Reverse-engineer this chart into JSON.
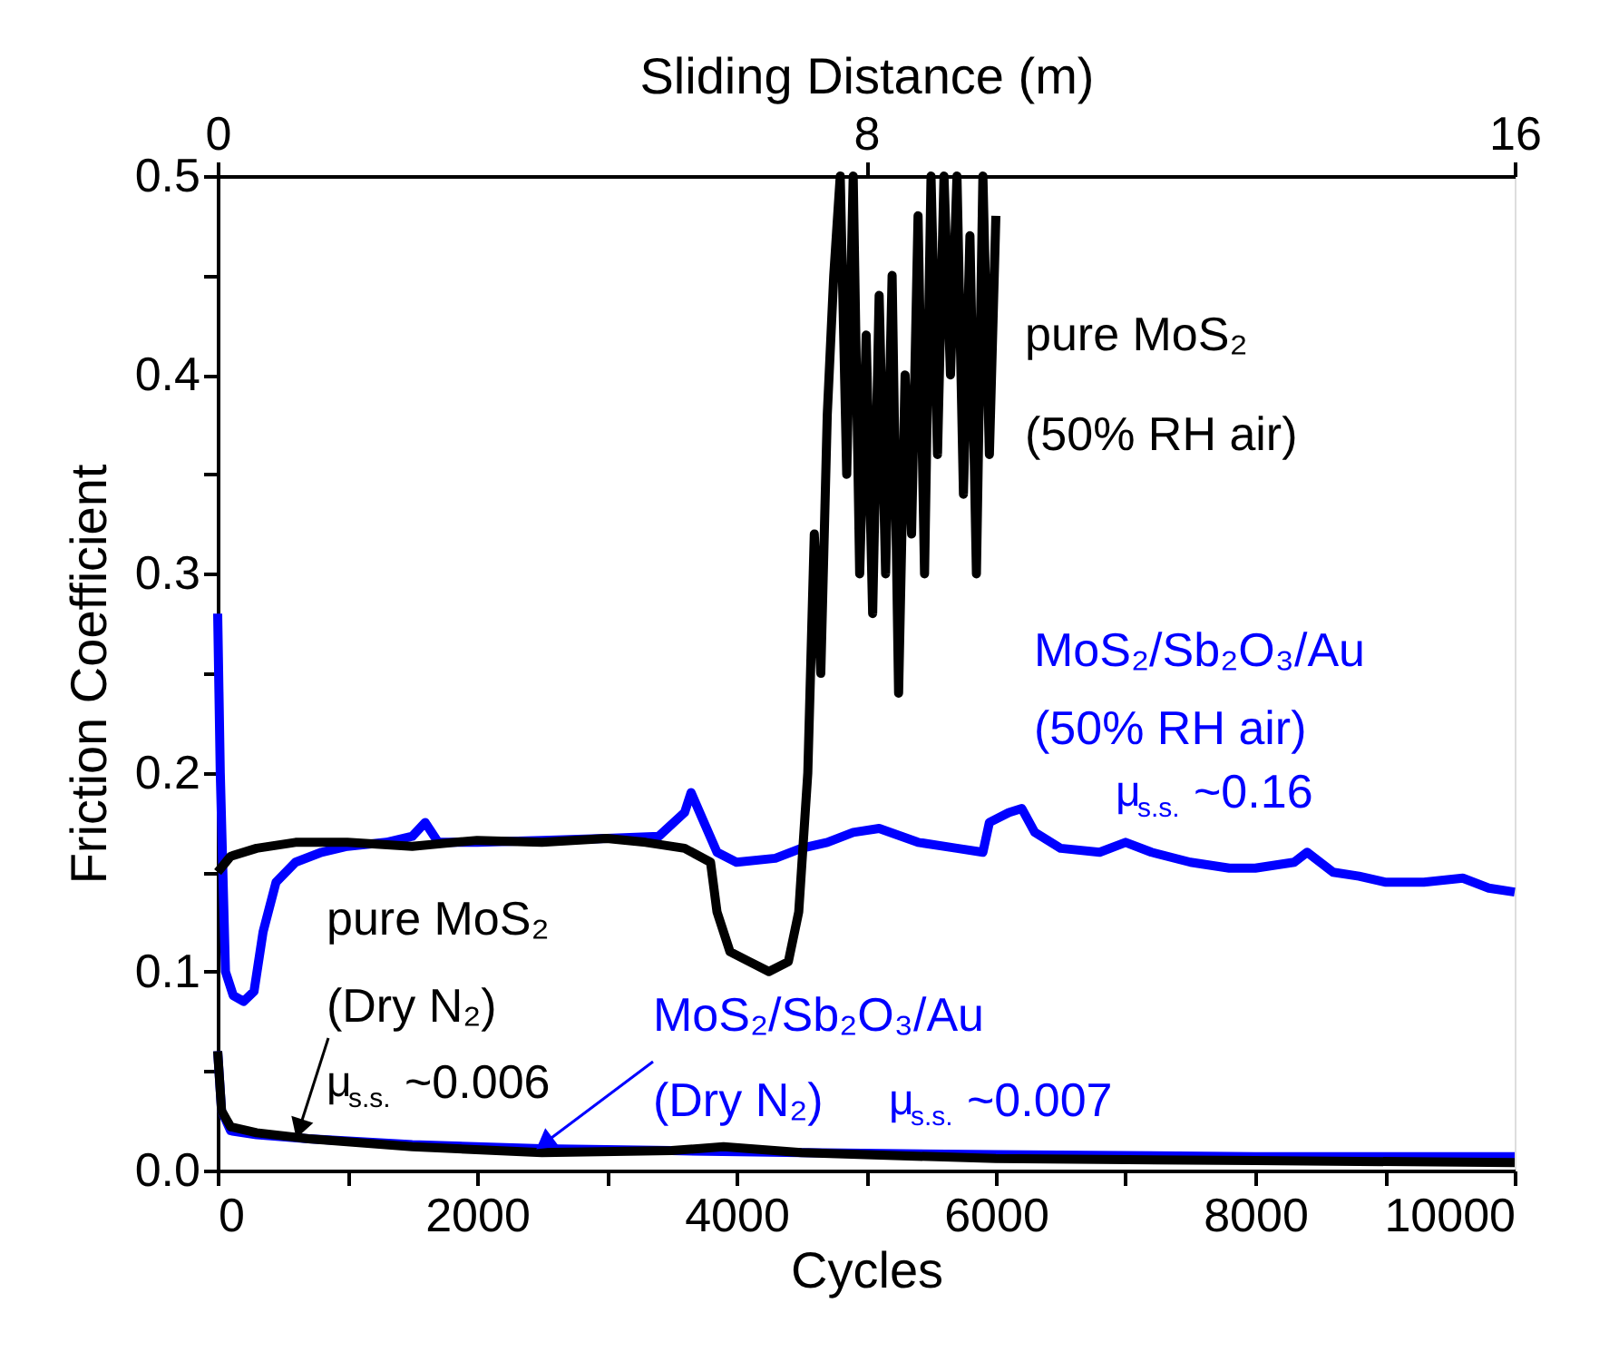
{
  "chart_data": {
    "type": "line",
    "xlabel": "Cycles",
    "ylabel": "Friction Coefficient",
    "x2label": "Sliding Distance (m)",
    "xlim": [
      0,
      10000
    ],
    "xticks": [
      0,
      {
        "value": 1000,
        "label": null
      },
      2000,
      {
        "value": 3000,
        "label": null
      },
      4000,
      {
        "value": 5000,
        "label": null
      },
      6000,
      {
        "value": 7000,
        "label": null
      },
      8000,
      {
        "value": 9000,
        "label": null
      },
      10000
    ],
    "x2lim": [
      0,
      16
    ],
    "x2ticks": [
      0,
      8,
      16
    ],
    "ylim": [
      0,
      0.5
    ],
    "yticks": [
      {
        "value": 0,
        "label": "0.0"
      },
      {
        "value": 0.05,
        "label": null
      },
      0.1,
      {
        "value": 0.15,
        "label": null
      },
      0.2,
      {
        "value": 0.25,
        "label": null
      },
      0.3,
      {
        "value": 0.35,
        "label": null
      },
      0.4,
      {
        "value": 0.45,
        "label": null
      },
      0.5
    ],
    "grid": false,
    "legend": false,
    "line_style": "solid",
    "marker": "none",
    "series": [
      {
        "name": "MoS₂/Sb₂O₃/Au (50% RH air)",
        "color": "#0000ff",
        "x": [
          0,
          20,
          60,
          120,
          200,
          280,
          350,
          450,
          600,
          800,
          1000,
          1300,
          1500,
          1600,
          1700,
          2000,
          2500,
          3000,
          3400,
          3600,
          3650,
          3750,
          3850,
          4000,
          4300,
          4500,
          4700,
          4900,
          5100,
          5400,
          5700,
          5900,
          5950,
          6100,
          6200,
          6300,
          6500,
          6800,
          7000,
          7200,
          7500,
          7800,
          8000,
          8300,
          8400,
          8600,
          8800,
          9000,
          9300,
          9600,
          9800,
          10000
        ],
        "values": [
          0.28,
          0.2,
          0.1,
          0.088,
          0.085,
          0.09,
          0.12,
          0.145,
          0.155,
          0.16,
          0.163,
          0.165,
          0.168,
          0.175,
          0.165,
          0.165,
          0.166,
          0.167,
          0.168,
          0.18,
          0.19,
          0.175,
          0.16,
          0.155,
          0.157,
          0.162,
          0.165,
          0.17,
          0.172,
          0.165,
          0.162,
          0.16,
          0.175,
          0.18,
          0.182,
          0.17,
          0.162,
          0.16,
          0.165,
          0.16,
          0.155,
          0.152,
          0.152,
          0.155,
          0.16,
          0.15,
          0.148,
          0.145,
          0.145,
          0.147,
          0.142,
          0.14
        ]
      },
      {
        "name": "pure MoS₂ (50% RH air)",
        "color": "#000000",
        "x": [
          0,
          100,
          300,
          600,
          1000,
          1500,
          2000,
          2500,
          3000,
          3300,
          3600,
          3800,
          3850,
          3950,
          4100,
          4250,
          4400,
          4480,
          4550,
          4600,
          4650,
          4700,
          4750,
          4800,
          4850,
          4900,
          4950,
          5000,
          5050,
          5100,
          5150,
          5200,
          5250,
          5300,
          5350,
          5400,
          5450,
          5500,
          5550,
          5600,
          5650,
          5700,
          5750,
          5800,
          5850,
          5900,
          5950,
          6000
        ],
        "values": [
          0.15,
          0.158,
          0.162,
          0.165,
          0.165,
          0.163,
          0.166,
          0.165,
          0.167,
          0.165,
          0.162,
          0.155,
          0.13,
          0.11,
          0.105,
          0.1,
          0.105,
          0.13,
          0.2,
          0.32,
          0.25,
          0.38,
          0.45,
          0.5,
          0.35,
          0.5,
          0.3,
          0.42,
          0.28,
          0.44,
          0.3,
          0.45,
          0.24,
          0.4,
          0.32,
          0.48,
          0.3,
          0.5,
          0.36,
          0.5,
          0.4,
          0.5,
          0.34,
          0.47,
          0.3,
          0.5,
          0.36,
          0.48
        ]
      },
      {
        "name": "MoS₂/Sb₂O₃/Au (Dry N₂)",
        "color": "#0000ff",
        "x": [
          0,
          30,
          100,
          300,
          700,
          1500,
          2500,
          3500,
          4500,
          6000,
          8000,
          10000
        ],
        "values": [
          0.06,
          0.03,
          0.02,
          0.018,
          0.016,
          0.013,
          0.011,
          0.01,
          0.009,
          0.008,
          0.007,
          0.007
        ]
      },
      {
        "name": "pure MoS₂ (Dry N₂)",
        "color": "#000000",
        "x": [
          0,
          30,
          100,
          300,
          700,
          1500,
          2500,
          3500,
          3900,
          4500,
          6000,
          8000,
          10000
        ],
        "values": [
          0.06,
          0.03,
          0.022,
          0.019,
          0.016,
          0.012,
          0.009,
          0.01,
          0.012,
          0.009,
          0.006,
          0.005,
          0.004
        ]
      }
    ],
    "annotations": [
      "μ$_{s.s.}$~0.16",
      "μ$_{s.s.}$~0.006",
      "μ$_{s.s.}$~0.007"
    ]
  }
}
